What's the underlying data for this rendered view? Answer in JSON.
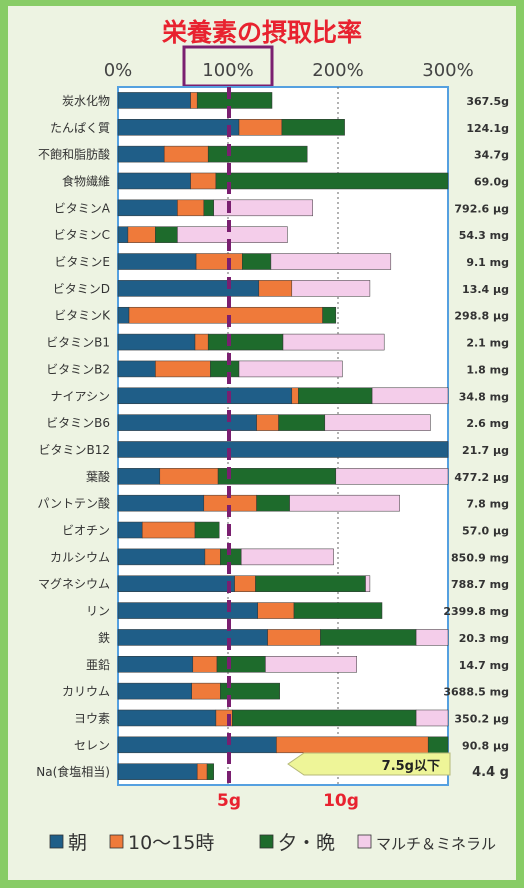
{
  "colors": {
    "frame": "#88cc66",
    "panel": "#edf3e2",
    "plot_bg": "#ffffff",
    "plot_border": "#55a0e0",
    "title": "#e8222f",
    "marker_line": "#7a1f70",
    "sodium_marker": "#e8222f",
    "note_fill": "#eef598"
  },
  "chart_data": {
    "type": "bar",
    "stacked": true,
    "orientation": "horizontal",
    "title": "栄養素の摂取比率",
    "x_ticks": [
      "0%",
      "100%",
      "200%",
      "300%"
    ],
    "xlim": [
      0,
      300
    ],
    "highlight_tick": "100%",
    "categories": [
      "炭水化物",
      "たんぱく質",
      "不飽和脂肪酸",
      "食物繊維",
      "ビタミンA",
      "ビタミンC",
      "ビタミンE",
      "ビタミンD",
      "ビタミンK",
      "ビタミンB1",
      "ビタミンB2",
      "ナイアシン",
      "ビタミンB6",
      "ビタミンB12",
      "葉酸",
      "パントテン酸",
      "ビオチン",
      "カルシウム",
      "マグネシウム",
      "リン",
      "鉄",
      "亜鉛",
      "カリウム",
      "ヨウ素",
      "セレン",
      "Na(食塩相当)"
    ],
    "totals": [
      "367.5g",
      "124.1g",
      "34.7g",
      "69.0g",
      "792.6 μg",
      "54.3 mg",
      "9.1 mg",
      "13.4 μg",
      "298.8 μg",
      "2.1 mg",
      "1.8 mg",
      "34.8 mg",
      "2.6 mg",
      "21.7 μg",
      "477.2 μg",
      "7.8 mg",
      "57.0 μg",
      "850.9 mg",
      "788.7 mg",
      "2399.8 mg",
      "20.3 mg",
      "14.7 mg",
      "3688.5 mg",
      "350.2 μg",
      "90.8 μg",
      "4.4 g"
    ],
    "series": [
      {
        "name": "朝",
        "color": "#1f5e88",
        "values": [
          66,
          110,
          42,
          66,
          54,
          9,
          71,
          128,
          10,
          70,
          34,
          158,
          126,
          300,
          38,
          78,
          22,
          79,
          106,
          127,
          136,
          68,
          67,
          89,
          144,
          72
        ]
      },
      {
        "name": "10〜15時",
        "color": "#ef7a3a",
        "values": [
          6,
          39,
          40,
          23,
          24,
          25,
          42,
          30,
          176,
          12,
          50,
          6,
          20,
          0,
          53,
          48,
          48,
          14,
          19,
          33,
          48,
          22,
          26,
          15,
          138,
          9
        ]
      },
      {
        "name": "夕・晩",
        "color": "#1e6b2c",
        "values": [
          68,
          57,
          90,
          212,
          9,
          20,
          26,
          0,
          12,
          68,
          26,
          67,
          42,
          0,
          107,
          30,
          22,
          19,
          100,
          80,
          87,
          44,
          54,
          167,
          18,
          6
        ]
      },
      {
        "name": "マルチ＆ミネラル",
        "color": "#f4cdea",
        "values": [
          0,
          0,
          0,
          0,
          90,
          100,
          109,
          71,
          0,
          92,
          94,
          69,
          96,
          0,
          102,
          100,
          0,
          84,
          4,
          0,
          29,
          83,
          0,
          32,
          0,
          0
        ]
      }
    ],
    "sodium_scale_labels": [
      "5g",
      "10g"
    ],
    "sodium_note": "7.5g以下"
  }
}
